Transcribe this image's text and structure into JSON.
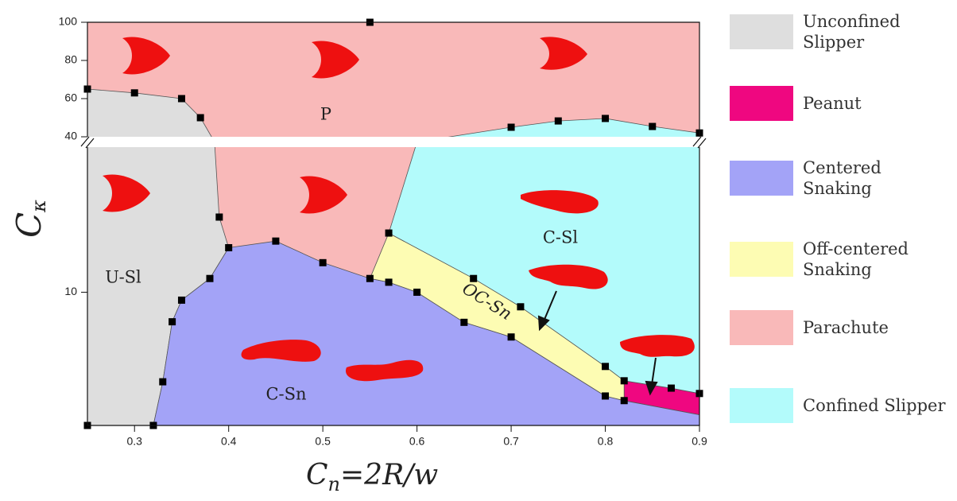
{
  "chart_data": {
    "type": "phase-diagram",
    "x_label": {
      "main": "C",
      "sub": "n",
      "rest": "=2R/w"
    },
    "y_label": {
      "main": "C",
      "sub": "κ"
    },
    "xlim": [
      0.25,
      0.9
    ],
    "xticks": [
      0.3,
      0.4,
      0.5,
      0.6,
      0.7,
      0.8,
      0.9
    ],
    "y_panels": [
      {
        "ylim": [
          40,
          100
        ],
        "yticks": [
          40,
          60,
          80,
          100
        ],
        "scale": "linear"
      },
      {
        "ylim": [
          2.8,
          40
        ],
        "yticks": [
          10
        ],
        "scale": "log"
      }
    ],
    "regions": [
      {
        "name": "Unconfined Slipper",
        "label": "U-Sl",
        "color": "#dedede",
        "x": [
          0.25,
          0.25,
          0.3,
          0.35,
          0.37,
          0.385,
          0.39,
          0.4,
          0.38,
          0.35,
          0.34,
          0.33,
          0.32
        ],
        "y": [
          2.8,
          65,
          63,
          60,
          50,
          40,
          20.5,
          15.3,
          11.4,
          9.27,
          7.54,
          4.25,
          2.8
        ]
      },
      {
        "name": "Peanut",
        "color": "#ef0780",
        "x": [
          0.82,
          0.87,
          0.9,
          0.9,
          0.82
        ],
        "y": [
          4.29,
          4.0,
          3.8,
          3.1,
          3.55
        ]
      },
      {
        "name": "Centered Snaking",
        "label": "C-Sn",
        "color": "#a3a3f7",
        "x": [
          0.32,
          0.33,
          0.34,
          0.35,
          0.38,
          0.4,
          0.45,
          0.5,
          0.55,
          0.57,
          0.6,
          0.65,
          0.7,
          0.8,
          0.82,
          0.9,
          0.9
        ],
        "y": [
          2.8,
          4.25,
          7.54,
          9.27,
          11.4,
          15.3,
          16.3,
          13.26,
          11.4,
          11.0,
          10,
          7.5,
          6.52,
          3.71,
          3.55,
          3.1,
          2.8
        ]
      },
      {
        "name": "Off-centered Snaking",
        "label": "OC-Sn",
        "color": "#fdfcb3",
        "x": [
          0.55,
          0.57,
          0.66,
          0.71,
          0.8,
          0.82,
          0.82,
          0.8,
          0.7,
          0.65,
          0.6,
          0.57
        ],
        "y": [
          11.4,
          17.6,
          11.4,
          8.7,
          4.92,
          4.29,
          3.55,
          3.71,
          6.52,
          7.5,
          10,
          11.0
        ]
      },
      {
        "name": "Parachute",
        "label": "P",
        "color": "#f9b9b9",
        "x": [
          0.25,
          0.9,
          0.9,
          0.25
        ],
        "y": [
          100,
          100,
          2.8,
          2.8
        ]
      },
      {
        "name": "Confined Slipper",
        "label": "C-Sl",
        "color": "#b3fbfb",
        "x": [
          0.57,
          0.6,
          0.7,
          0.75,
          0.8,
          0.85,
          0.9,
          0.9,
          0.87,
          0.82,
          0.8,
          0.71,
          0.66
        ],
        "y": [
          17.6,
          40,
          45,
          48.3,
          49.6,
          45.4,
          42,
          3.8,
          4.0,
          4.29,
          4.92,
          8.7,
          11.4
        ]
      }
    ],
    "markers": {
      "x": [
        0.25,
        0.3,
        0.35,
        0.37,
        0.39,
        0.4,
        0.38,
        0.35,
        0.34,
        0.33,
        0.32,
        0.25,
        0.45,
        0.5,
        0.55,
        0.57,
        0.6,
        0.65,
        0.7,
        0.8,
        0.82,
        0.57,
        0.66,
        0.71,
        0.8,
        0.82,
        0.87,
        0.9,
        0.7,
        0.75,
        0.8,
        0.85,
        0.9,
        0.55
      ],
      "y": [
        65,
        63,
        60,
        50,
        20.5,
        15.3,
        11.4,
        9.27,
        7.54,
        4.25,
        2.8,
        2.8,
        16.3,
        13.26,
        11.4,
        11.0,
        10,
        7.5,
        6.52,
        3.71,
        3.55,
        17.6,
        11.4,
        8.7,
        4.92,
        4.29,
        4.0,
        3.8,
        45,
        48.3,
        49.6,
        45.4,
        42,
        100
      ]
    }
  }
}
